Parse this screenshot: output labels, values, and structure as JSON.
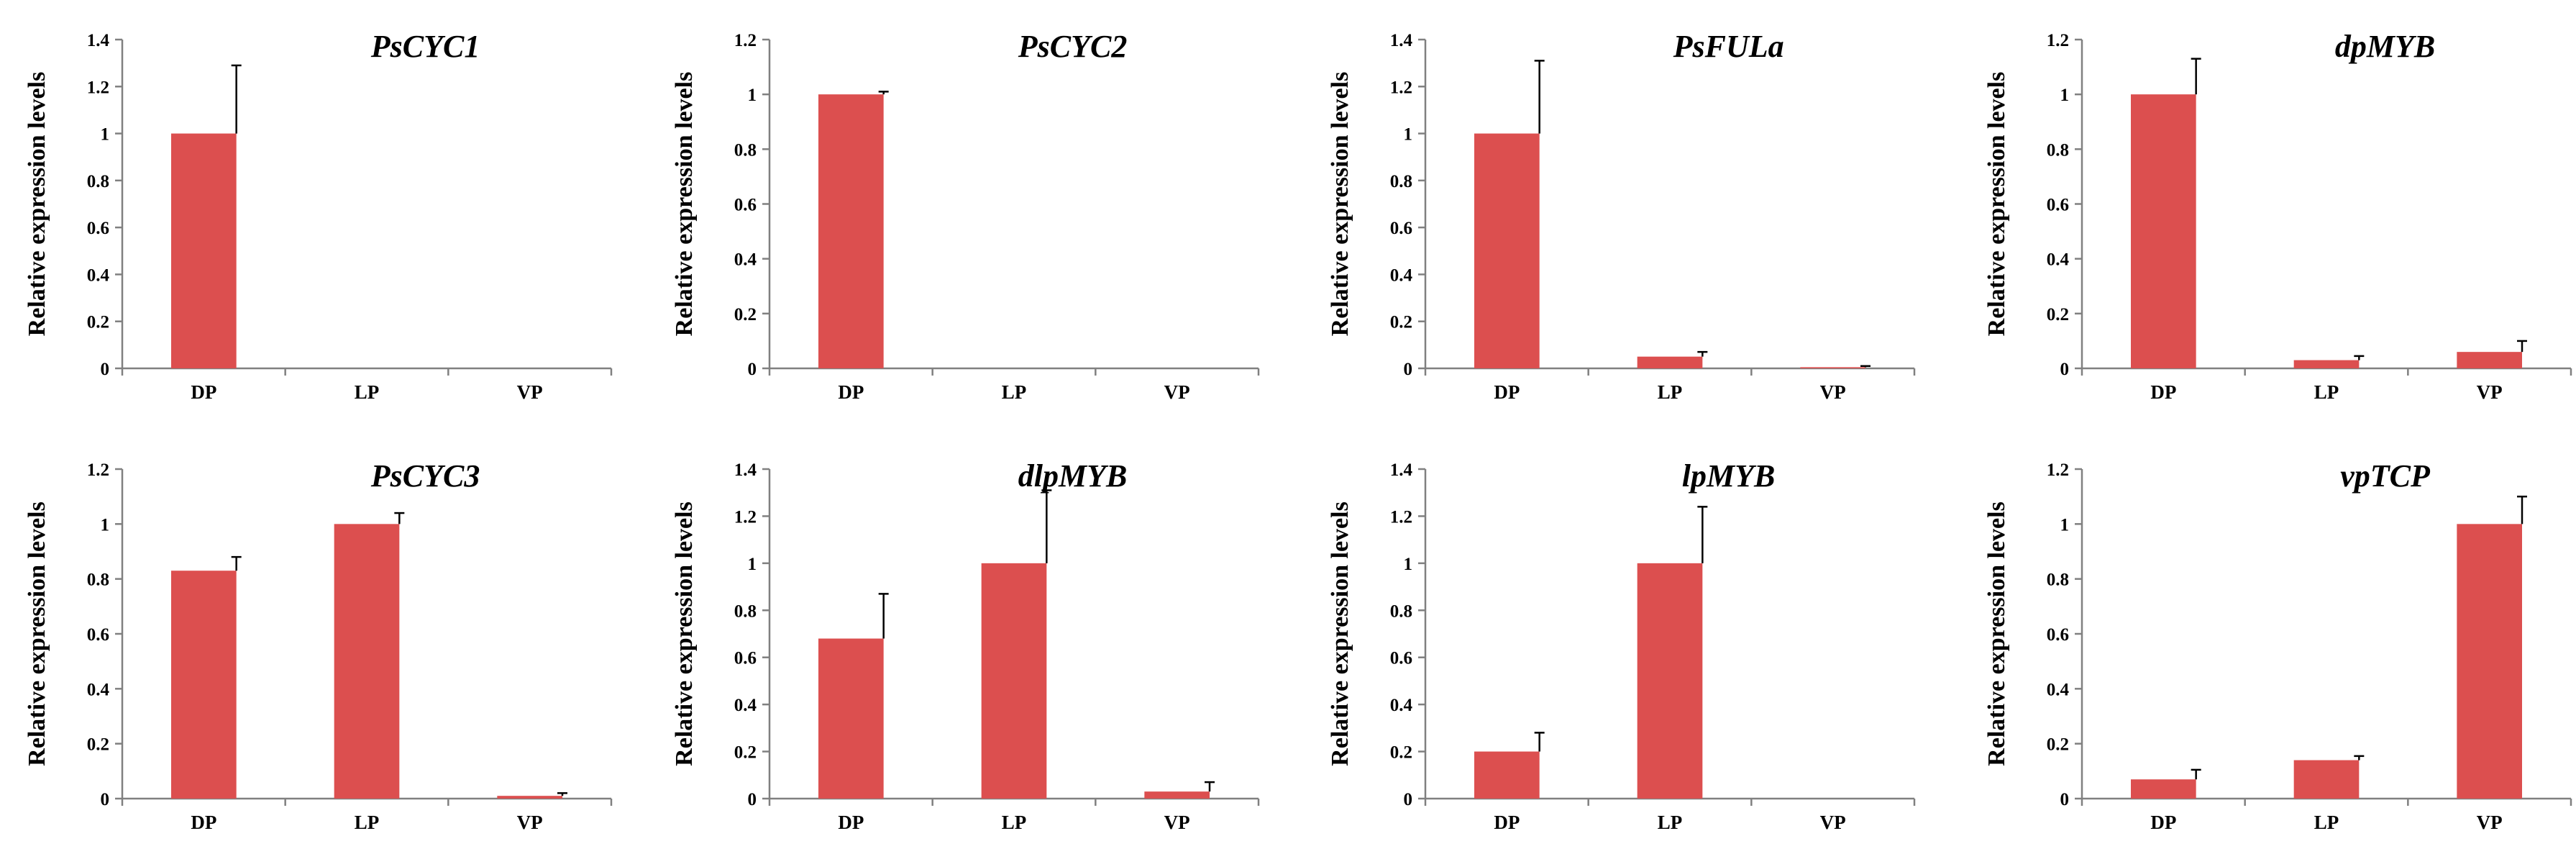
{
  "figure": {
    "bar_color": "#dc4f4f",
    "error_bar_color": "#000000",
    "axis_color": "#808080"
  },
  "chart_data": [
    {
      "type": "bar",
      "title": "PsCYC1",
      "categories": [
        "DP",
        "LP",
        "VP"
      ],
      "values": [
        1.0,
        0,
        0
      ],
      "errors": [
        0.29,
        0,
        0
      ],
      "ylabel": "Relative expression levels",
      "xlabel": "",
      "ylim": [
        0,
        1.4
      ],
      "yticks": [
        "0",
        "0.2",
        "0.4",
        "0.6",
        "0.8",
        "1",
        "1.2",
        "1.4"
      ]
    },
    {
      "type": "bar",
      "title": "PsCYC2",
      "categories": [
        "DP",
        "LP",
        "VP"
      ],
      "values": [
        1.0,
        0,
        0
      ],
      "errors": [
        0.01,
        0,
        0
      ],
      "ylabel": "Relative expression levels",
      "xlabel": "",
      "ylim": [
        0,
        1.2
      ],
      "yticks": [
        "0",
        "0.2",
        "0.4",
        "0.6",
        "0.8",
        "1",
        "1.2"
      ]
    },
    {
      "type": "bar",
      "title": "PsFULa",
      "categories": [
        "DP",
        "LP",
        "VP"
      ],
      "values": [
        1.0,
        0.05,
        0.005
      ],
      "errors": [
        0.31,
        0.02,
        0.005
      ],
      "ylabel": "Relative expression levels",
      "xlabel": "",
      "ylim": [
        0,
        1.4
      ],
      "yticks": [
        "0",
        "0.2",
        "0.4",
        "0.6",
        "0.8",
        "1",
        "1.2",
        "1.4"
      ]
    },
    {
      "type": "bar",
      "title": "dpMYB",
      "categories": [
        "DP",
        "LP",
        "VP"
      ],
      "values": [
        1.0,
        0.03,
        0.06
      ],
      "errors": [
        0.13,
        0.015,
        0.04
      ],
      "ylabel": "Relative expression levels",
      "xlabel": "",
      "ylim": [
        0,
        1.2
      ],
      "yticks": [
        "0",
        "0.2",
        "0.4",
        "0.6",
        "0.8",
        "1",
        "1.2"
      ]
    },
    {
      "type": "bar",
      "title": "PsCYC3",
      "categories": [
        "DP",
        "LP",
        "VP"
      ],
      "values": [
        0.83,
        1.0,
        0.01
      ],
      "errors": [
        0.05,
        0.04,
        0.01
      ],
      "ylabel": "Relative expression levels",
      "xlabel": "",
      "ylim": [
        0,
        1.2
      ],
      "yticks": [
        "0",
        "0.2",
        "0.4",
        "0.6",
        "0.8",
        "1",
        "1.2"
      ]
    },
    {
      "type": "bar",
      "title": "dlpMYB",
      "categories": [
        "DP",
        "LP",
        "VP"
      ],
      "values": [
        0.68,
        1.0,
        0.03
      ],
      "errors": [
        0.19,
        0.31,
        0.04
      ],
      "ylabel": "Relative expression levels",
      "xlabel": "",
      "ylim": [
        0,
        1.4
      ],
      "yticks": [
        "0",
        "0.2",
        "0.4",
        "0.6",
        "0.8",
        "1",
        "1.2",
        "1.4"
      ]
    },
    {
      "type": "bar",
      "title": "lpMYB",
      "categories": [
        "DP",
        "LP",
        "VP"
      ],
      "values": [
        0.2,
        1.0,
        0
      ],
      "errors": [
        0.08,
        0.24,
        0
      ],
      "ylabel": "Relative expression levels",
      "xlabel": "",
      "ylim": [
        0,
        1.4
      ],
      "yticks": [
        "0",
        "0.2",
        "0.4",
        "0.6",
        "0.8",
        "1",
        "1.2",
        "1.4"
      ]
    },
    {
      "type": "bar",
      "title": "vpTCP",
      "categories": [
        "DP",
        "LP",
        "VP"
      ],
      "values": [
        0.07,
        0.14,
        1.0
      ],
      "errors": [
        0.035,
        0.015,
        0.1
      ],
      "ylabel": "Relative expression levels",
      "xlabel": "",
      "ylim": [
        0,
        1.2
      ],
      "yticks": [
        "0",
        "0.2",
        "0.4",
        "0.6",
        "0.8",
        "1",
        "1.2"
      ]
    }
  ]
}
